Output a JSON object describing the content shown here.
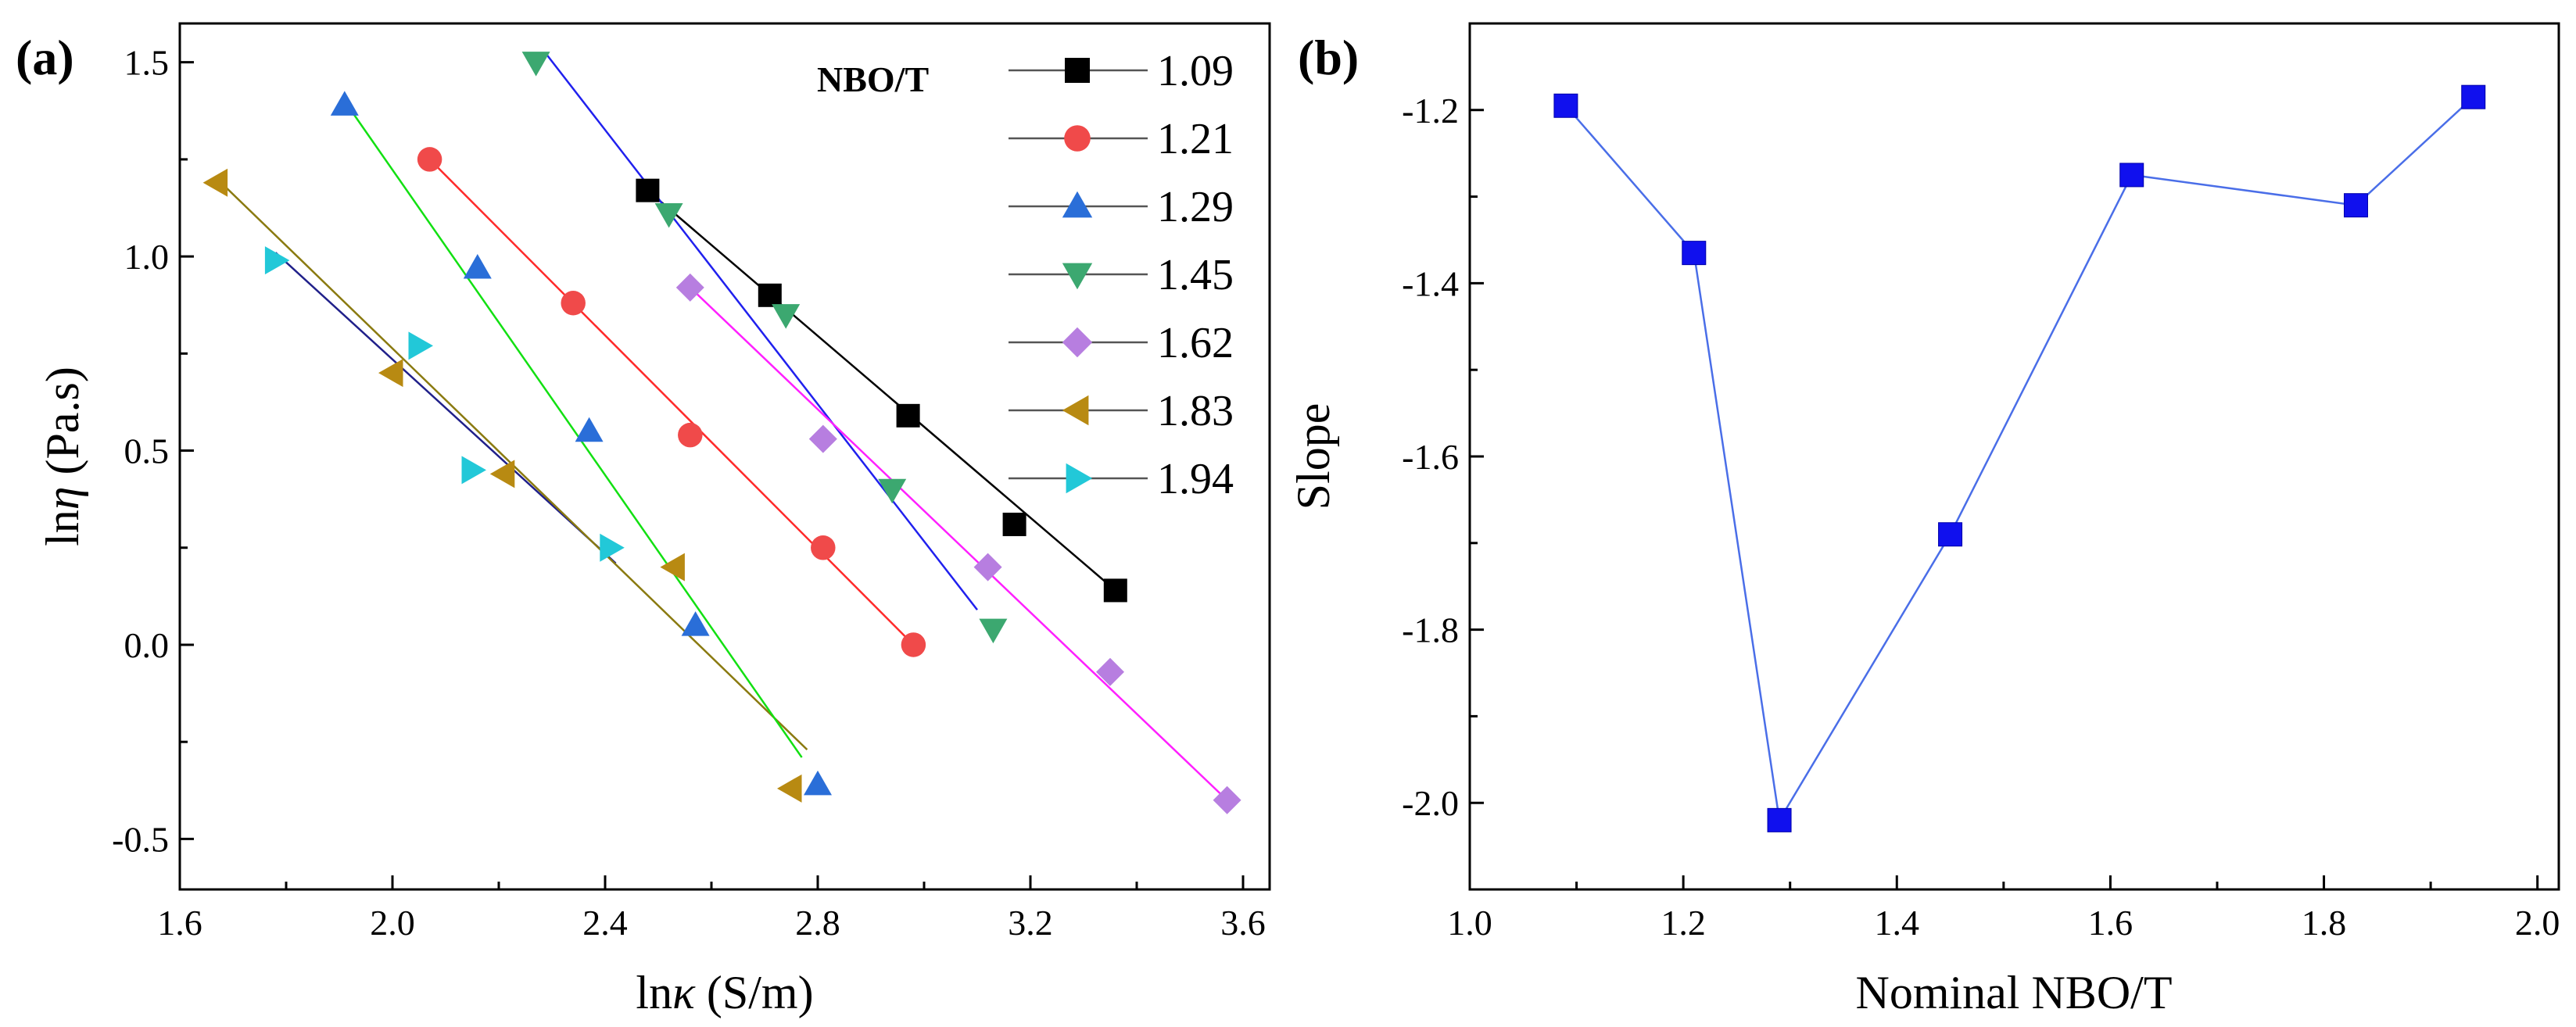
{
  "chart_data": [
    {
      "type": "scatter",
      "panel_label": "(a)",
      "title": "",
      "xlabel_pre": "ln",
      "xlabel_sym": "κ",
      "xlabel_post": " (S/m)",
      "ylabel_pre": "ln",
      "ylabel_sym": "η",
      "ylabel_post": " (Pa.s)",
      "xlim": [
        1.6,
        3.65
      ],
      "ylim": [
        -0.63,
        1.6
      ],
      "xticks": [
        1.6,
        2.0,
        2.4,
        2.8,
        3.2,
        3.6
      ],
      "xtick_labels": [
        "1.6",
        "2.0",
        "2.4",
        "2.8",
        "3.2",
        "3.6"
      ],
      "yticks": [
        -0.5,
        0.0,
        0.5,
        1.0,
        1.5
      ],
      "ytick_labels": [
        "-0.5",
        "0.0",
        "0.5",
        "1.0",
        "1.5"
      ],
      "legend_title": "NBO/T",
      "legend_position": "top-right",
      "grid": false,
      "series": [
        {
          "name": "1.09",
          "marker": "square",
          "color": "#000000",
          "line_color": "#000000",
          "x": [
            2.48,
            2.71,
            2.97,
            3.17,
            3.36
          ],
          "y": [
            1.17,
            0.9,
            0.59,
            0.31,
            0.14
          ],
          "fit": [
            [
              2.48,
              1.17
            ],
            [
              3.36,
              0.14
            ]
          ]
        },
        {
          "name": "1.21",
          "marker": "circle",
          "color": "#f04a4a",
          "line_color": "#ff2a2a",
          "x": [
            2.07,
            2.34,
            2.56,
            2.81,
            2.98
          ],
          "y": [
            1.25,
            0.88,
            0.54,
            0.25,
            0.0
          ],
          "fit": [
            [
              2.07,
              1.25
            ],
            [
              2.98,
              0.0
            ]
          ]
        },
        {
          "name": "1.29",
          "marker": "triangle-up",
          "color": "#2a6ed8",
          "line_color": "#20208a",
          "x": [
            1.91,
            2.16,
            2.37,
            2.57,
            2.8
          ],
          "y": [
            1.39,
            0.97,
            0.55,
            0.05,
            -0.36
          ],
          "fit": [
            [
              1.78,
              1.01
            ],
            [
              2.42,
              0.21
            ]
          ]
        },
        {
          "name": "1.45",
          "marker": "triangle-down",
          "color": "#3ca870",
          "line_color": "#2020ee",
          "x": [
            2.27,
            2.52,
            2.74,
            2.94,
            3.13
          ],
          "y": [
            1.5,
            1.11,
            0.85,
            0.4,
            0.04
          ],
          "fit": [
            [
              2.29,
              1.52
            ],
            [
              3.1,
              0.09
            ]
          ]
        },
        {
          "name": "1.62",
          "marker": "diamond",
          "color": "#b77ee0",
          "line_color": "#ff20ff",
          "x": [
            2.56,
            2.81,
            3.12,
            3.35,
            3.57
          ],
          "y": [
            0.92,
            0.53,
            0.2,
            -0.07,
            -0.4
          ],
          "fit": [
            [
              2.56,
              0.92
            ],
            [
              3.57,
              -0.4
            ]
          ]
        },
        {
          "name": "1.83",
          "marker": "triangle-left",
          "color": "#b88a12",
          "line_color": "#8a7a10",
          "x": [
            1.67,
            2.0,
            2.21,
            2.53,
            2.75
          ],
          "y": [
            1.19,
            0.7,
            0.44,
            0.2,
            -0.37
          ],
          "fit": [
            [
              1.67,
              1.2
            ],
            [
              2.78,
              -0.27
            ]
          ]
        },
        {
          "name": "1.94",
          "marker": "triangle-right",
          "color": "#22c8d8",
          "line_color": "#12e012",
          "x": [
            1.78,
            2.05,
            2.15,
            2.41
          ],
          "y": [
            0.99,
            0.77,
            0.45,
            0.25
          ],
          "fit": [
            [
              1.91,
              1.4
            ],
            [
              2.77,
              -0.29
            ]
          ]
        }
      ]
    },
    {
      "type": "line",
      "panel_label": "(b)",
      "title": "",
      "xlabel": "Nominal NBO/T",
      "ylabel": "Slope",
      "xlim": [
        1.0,
        2.02
      ],
      "ylim": [
        -2.1,
        -1.1
      ],
      "xticks": [
        1.0,
        1.2,
        1.4,
        1.6,
        1.8,
        2.0
      ],
      "xtick_labels": [
        "1.0",
        "1.2",
        "1.4",
        "1.6",
        "1.8",
        "2.0"
      ],
      "yticks": [
        -2.0,
        -1.8,
        -1.6,
        -1.4,
        -1.2
      ],
      "ytick_labels": [
        "-2.0",
        "-1.8",
        "-1.6",
        "-1.4",
        "-1.2"
      ],
      "grid": false,
      "series": [
        {
          "name": "Slope",
          "marker": "square",
          "color": "#1010ee",
          "line_color": "#4a6ee8",
          "x": [
            1.09,
            1.21,
            1.29,
            1.45,
            1.62,
            1.83,
            1.94
          ],
          "y": [
            -1.195,
            -1.365,
            -2.02,
            -1.69,
            -1.275,
            -1.31,
            -1.185
          ]
        }
      ]
    }
  ]
}
